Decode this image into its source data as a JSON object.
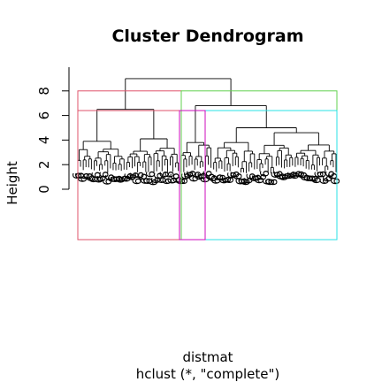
{
  "chart_data": {
    "type": "dendrogram",
    "title": "Cluster Dendrogram",
    "xlabel": "distmat",
    "sublabel": "hclust (*, \"complete\")",
    "ylabel": "Height",
    "ylim": [
      0,
      9
    ],
    "yticks": [
      "0",
      "2",
      "4",
      "6",
      "8"
    ],
    "method": "complete",
    "leaf_label_sample": "6",
    "merges": [
      {
        "name": "root",
        "height": 9.0
      },
      {
        "name": "left-main",
        "height": 6.5
      },
      {
        "name": "right-main",
        "height": 6.8
      },
      {
        "name": "right-sub",
        "height": 5.0
      }
    ],
    "cluster_rects": [
      {
        "name": "cluster-1",
        "color": "#DF536B",
        "height": 8.0
      },
      {
        "name": "cluster-2",
        "color": "#61D04F",
        "height": 8.0
      },
      {
        "name": "cluster-3",
        "color": "#DF536B",
        "height": 6.4
      },
      {
        "name": "cluster-4",
        "color": "#28E2E5",
        "height": 6.4
      },
      {
        "name": "cluster-5",
        "color": "#CD0BBC",
        "height": 6.4
      }
    ]
  }
}
